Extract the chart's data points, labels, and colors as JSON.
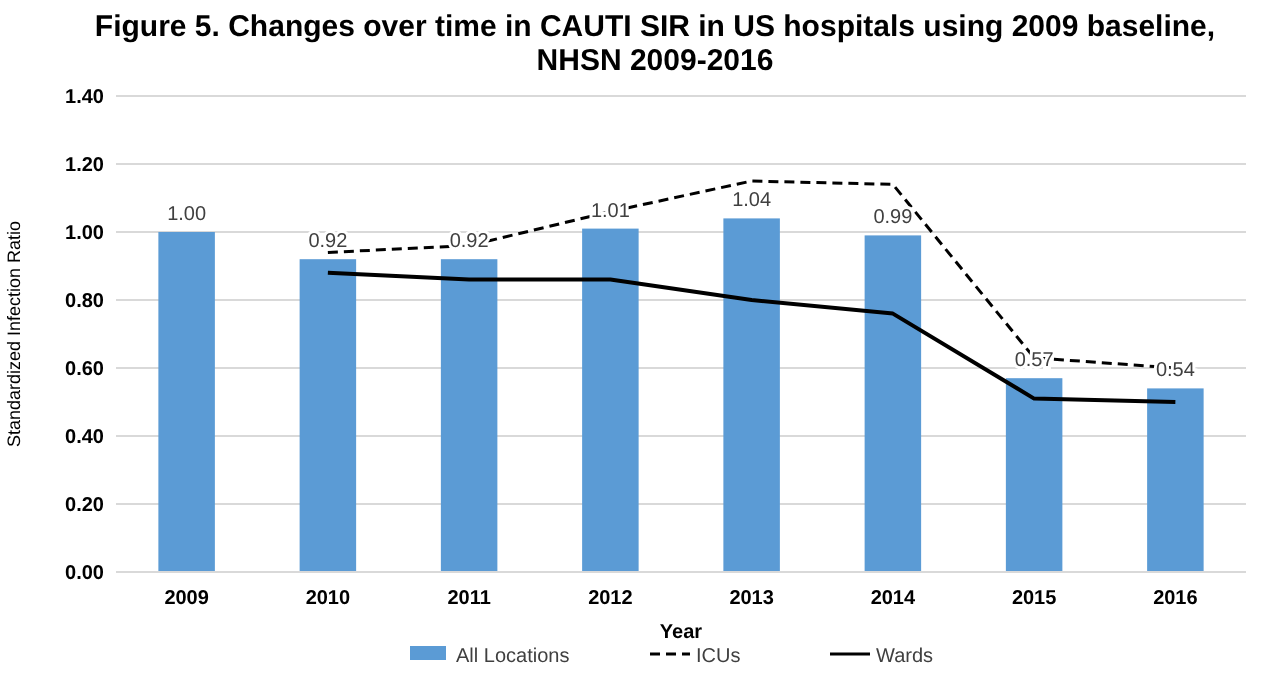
{
  "chart_data": {
    "type": "bar",
    "title": "Figure 5. Changes over time in CAUTI SIR in US hospitals using 2009 baseline, NHSN 2009-2016",
    "xlabel": "Year",
    "ylabel": "Standardized Infection Ratio",
    "categories": [
      "2009",
      "2010",
      "2011",
      "2012",
      "2013",
      "2014",
      "2015",
      "2016"
    ],
    "series": [
      {
        "name": "All Locations",
        "color": "#5b9bd5",
        "values": [
          1.0,
          0.92,
          0.92,
          1.01,
          1.04,
          0.99,
          0.57,
          0.54
        ],
        "value_labels": [
          "1.00",
          "0.92",
          "0.92",
          "1.01",
          "1.04",
          "0.99",
          "0.57",
          "0.54"
        ]
      },
      {
        "name": "ICUs",
        "type": "line",
        "color": "#000000",
        "line_style": "dashed",
        "values": [
          null,
          0.94,
          0.96,
          1.06,
          1.15,
          1.14,
          0.63,
          0.6
        ]
      },
      {
        "name": "Wards",
        "type": "line",
        "color": "#000000",
        "line_style": "solid",
        "values": [
          null,
          0.88,
          0.86,
          0.86,
          0.8,
          0.76,
          0.51,
          0.5
        ]
      }
    ],
    "ylim": [
      0,
      1.4
    ],
    "yticks": [
      {
        "value": 0,
        "label": "0.00"
      },
      {
        "value": 0.2,
        "label": "0.20"
      },
      {
        "value": 0.4,
        "label": "0.40"
      },
      {
        "value": 0.6,
        "label": "0.60"
      },
      {
        "value": 0.8,
        "label": "0.80"
      },
      {
        "value": 1.0,
        "label": "1.00"
      },
      {
        "value": 1.2,
        "label": "1.20"
      },
      {
        "value": 1.4,
        "label": "1.40"
      }
    ],
    "grid": "y",
    "legend": "bottom"
  }
}
